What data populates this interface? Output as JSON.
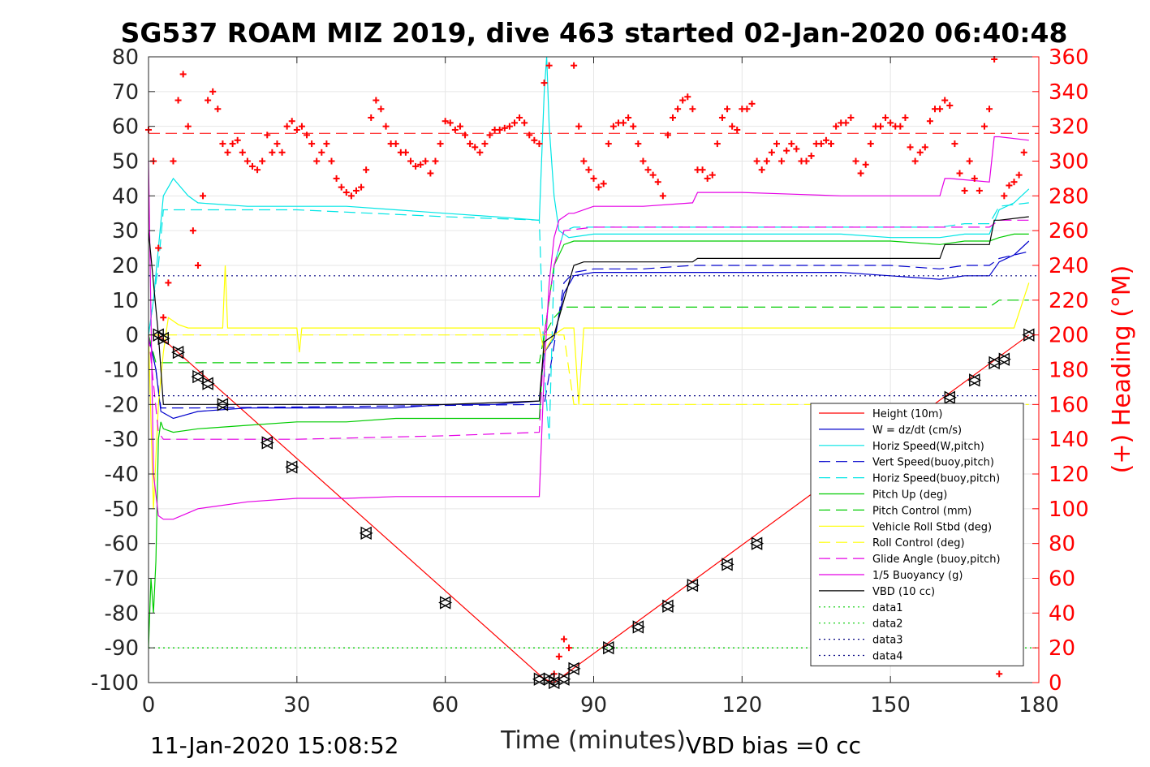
{
  "chart_data": {
    "type": "line",
    "title": "SG537 ROAM MIZ 2019, dive 463 started 02-Jan-2020 06:40:48",
    "xlabel": "Time (minutes)",
    "ylabel_right": "(+) Heading (°M)",
    "xlim": [
      0,
      180
    ],
    "ylim_left": [
      -100,
      80
    ],
    "ylim_right": [
      0,
      360
    ],
    "x_ticks": [
      0,
      30,
      60,
      90,
      120,
      150,
      180
    ],
    "y_ticks_left": [
      80,
      70,
      60,
      50,
      40,
      30,
      20,
      10,
      0,
      -10,
      -20,
      -30,
      -40,
      -50,
      -60,
      -70,
      -80,
      -90,
      -100
    ],
    "y_ticks_right": [
      360,
      340,
      320,
      300,
      280,
      260,
      240,
      220,
      200,
      180,
      160,
      140,
      120,
      100,
      80,
      60,
      40,
      20,
      0
    ],
    "grid": true,
    "legend_position": "bottom-right",
    "footer_left": "11-Jan-2020 15:08:52",
    "footer_right": "VBD bias =0 cc",
    "colors": {
      "red": "#ff0000",
      "blue": "#0000cc",
      "cyan": "#00e5e5",
      "green": "#00cc00",
      "yellow": "#ffff00",
      "magenta": "#e500e5",
      "black": "#000000"
    },
    "legend": [
      {
        "name": "Height (10m)",
        "color": "#ff0000",
        "dash": "solid"
      },
      {
        "name": "W = dz/dt (cm/s)",
        "color": "#0000cc",
        "dash": "solid"
      },
      {
        "name": "Horiz Speed(W,pitch)",
        "color": "#00e5e5",
        "dash": "solid"
      },
      {
        "name": "Vert Speed(buoy,pitch)",
        "color": "#0000cc",
        "dash": "dashed"
      },
      {
        "name": "Horiz Speed(buoy,pitch)",
        "color": "#00e5e5",
        "dash": "dashed"
      },
      {
        "name": "Pitch Up (deg)",
        "color": "#00cc00",
        "dash": "solid"
      },
      {
        "name": "Pitch Control (mm)",
        "color": "#00cc00",
        "dash": "dashed"
      },
      {
        "name": "Vehicle Roll Stbd (deg)",
        "color": "#ffff00",
        "dash": "solid"
      },
      {
        "name": "Roll Control (deg)",
        "color": "#ffff00",
        "dash": "dashed"
      },
      {
        "name": "Glide Angle (buoy,pitch)",
        "color": "#e500e5",
        "dash": "dashed"
      },
      {
        "name": "1/5 Buoyancy (g)",
        "color": "#e500e5",
        "dash": "solid"
      },
      {
        "name": "VBD (10 cc)",
        "color": "#000000",
        "dash": "solid"
      },
      {
        "name": "data1",
        "color": "#00cc00",
        "dash": "dotted"
      },
      {
        "name": "data2",
        "color": "#00cc00",
        "dash": "dotted"
      },
      {
        "name": "data3",
        "color": "#000080",
        "dash": "dotted"
      },
      {
        "name": "data4",
        "color": "#000080",
        "dash": "dotted"
      }
    ],
    "series": [
      {
        "name": "Height (10m)",
        "color": "#ff0000",
        "dash": "solid",
        "axis": "left",
        "x": [
          0,
          2,
          80,
          82,
          178
        ],
        "y": [
          0,
          0,
          -99,
          -100,
          0
        ]
      },
      {
        "name": "W = dz/dt (cm/s)",
        "color": "#0000cc",
        "dash": "solid",
        "axis": "left",
        "x": [
          0,
          1.5,
          2.5,
          5,
          10,
          20,
          30,
          40,
          50,
          60,
          70,
          79,
          80,
          82,
          84,
          86,
          90,
          100,
          110,
          120,
          130,
          140,
          150,
          160,
          165,
          170,
          172,
          175,
          178
        ],
        "y": [
          0,
          -10,
          -22,
          -24,
          -22,
          -21,
          -21,
          -21,
          -21,
          -20,
          -20,
          -19,
          -5,
          -1,
          12,
          17,
          18,
          18,
          18,
          18,
          18,
          18,
          17,
          16,
          17,
          17,
          21,
          23,
          27
        ]
      },
      {
        "name": "Horiz Speed(W,pitch)",
        "color": "#00e5e5",
        "dash": "solid",
        "axis": "left",
        "x": [
          0,
          1,
          2,
          3,
          5,
          8,
          10,
          20,
          30,
          40,
          50,
          60,
          70,
          79,
          80,
          80.5,
          81,
          82,
          83,
          85,
          90,
          100,
          110,
          120,
          130,
          140,
          150,
          160,
          165,
          170,
          172,
          175,
          178
        ],
        "y": [
          0,
          10,
          25,
          40,
          45,
          40,
          38,
          37,
          37,
          37,
          36,
          35,
          34,
          33,
          70,
          80,
          60,
          40,
          30,
          28,
          29,
          29,
          29,
          29,
          29,
          29,
          28,
          28,
          29,
          29,
          36,
          38,
          42
        ]
      },
      {
        "name": "Vert Speed(buoy,pitch)",
        "color": "#0000cc",
        "dash": "dashed",
        "axis": "left",
        "x": [
          0,
          1.5,
          2.5,
          10,
          80,
          82,
          84,
          86,
          90,
          100,
          110,
          120,
          130,
          140,
          150,
          160,
          165,
          170,
          172,
          178
        ],
        "y": [
          0,
          -10,
          -21,
          -21,
          -20,
          -3,
          15,
          18,
          19,
          19,
          20,
          20,
          20,
          20,
          20,
          19,
          20,
          20,
          22,
          24
        ]
      },
      {
        "name": "Horiz Speed(buoy,pitch)",
        "color": "#00e5e5",
        "dash": "dashed",
        "axis": "left",
        "x": [
          0,
          2,
          3,
          10,
          30,
          60,
          79,
          80,
          81,
          82,
          84,
          86,
          90,
          120,
          150,
          160,
          165,
          170,
          172,
          178
        ],
        "y": [
          0,
          20,
          36,
          36,
          36,
          34,
          33,
          -10,
          -30,
          20,
          30,
          31,
          31,
          31,
          31,
          31,
          32,
          32,
          37,
          38
        ]
      },
      {
        "name": "Pitch Up (deg)",
        "color": "#00cc00",
        "dash": "solid",
        "axis": "left",
        "x": [
          0,
          0.5,
          1,
          1.5,
          2,
          2.5,
          3,
          5,
          10,
          20,
          30,
          40,
          50,
          60,
          70,
          79,
          80,
          82,
          84,
          86,
          90,
          100,
          110,
          120,
          130,
          140,
          150,
          160,
          165,
          170,
          172,
          175,
          178
        ],
        "y": [
          -90,
          -70,
          -80,
          -65,
          -30,
          -25,
          -27,
          -28,
          -27,
          -26,
          -25,
          -25,
          -24,
          -24,
          -24,
          -24,
          0,
          20,
          26,
          27,
          27,
          27,
          27,
          27,
          27,
          27,
          27,
          26,
          27,
          27,
          28,
          29,
          29
        ]
      },
      {
        "name": "Pitch Control (mm)",
        "color": "#00cc00",
        "dash": "dashed",
        "axis": "left",
        "x": [
          0,
          1.5,
          2.5,
          10,
          79,
          80,
          82,
          84,
          90,
          120,
          150,
          170,
          172,
          178
        ],
        "y": [
          0,
          -8,
          -8,
          -8,
          -8,
          0,
          5,
          8,
          8,
          8,
          8,
          8,
          10,
          10
        ]
      },
      {
        "name": "Vehicle Roll Stbd (deg)",
        "color": "#ffff00",
        "dash": "solid",
        "axis": "left",
        "x": [
          0,
          1,
          2,
          3,
          4,
          6,
          8,
          15,
          15.5,
          16,
          17,
          30,
          30.5,
          31,
          40,
          60,
          79,
          80,
          82,
          84,
          86,
          87,
          88,
          90,
          100,
          110,
          120,
          130,
          140,
          150,
          160,
          170,
          175,
          178
        ],
        "y": [
          0,
          -50,
          -20,
          -5,
          5,
          3,
          2,
          2,
          20,
          2,
          2,
          2,
          -5,
          2,
          2,
          2,
          2,
          -5,
          0,
          2,
          2,
          -20,
          2,
          2,
          2,
          2,
          2,
          2,
          2,
          2,
          2,
          2,
          2,
          15
        ]
      },
      {
        "name": "Roll Control (deg)",
        "color": "#ffff00",
        "dash": "dashed",
        "axis": "left",
        "x": [
          0,
          2,
          4,
          80,
          82,
          84,
          86,
          178
        ],
        "y": [
          0,
          0,
          0,
          0,
          0,
          0,
          -20,
          -20
        ]
      },
      {
        "name": "Glide Angle (buoy,pitch)",
        "color": "#e500e5",
        "dash": "dashed",
        "axis": "left",
        "x": [
          0,
          2,
          3,
          10,
          30,
          60,
          79,
          80,
          82,
          84,
          90,
          120,
          150,
          160,
          170,
          172,
          178
        ],
        "y": [
          0,
          -28,
          -30,
          -30,
          -30,
          -29,
          -28,
          0,
          20,
          30,
          31,
          31,
          31,
          31,
          31,
          33,
          33
        ]
      },
      {
        "name": "1/5 Buoyancy (g)",
        "color": "#e500e5",
        "dash": "solid",
        "axis": "left",
        "x": [
          0,
          1,
          2,
          3,
          5,
          10,
          20,
          30,
          40,
          50,
          60,
          70,
          78,
          79,
          80,
          81,
          82,
          83,
          84,
          85,
          86,
          90,
          100,
          110,
          111,
          120,
          130,
          140,
          150,
          160,
          161,
          162,
          170,
          171,
          172,
          178
        ],
        "y": [
          50,
          -40,
          -52,
          -53,
          -53,
          -50,
          -48,
          -47,
          -47,
          -46.5,
          -46.5,
          -46.5,
          -46.5,
          -46.5,
          -10,
          15,
          28,
          33,
          34,
          35,
          35,
          37,
          37,
          38,
          41,
          41,
          40.5,
          40,
          40,
          40,
          45,
          45,
          44,
          57,
          57,
          56
        ]
      },
      {
        "name": "VBD (10 cc)",
        "color": "#000000",
        "dash": "solid",
        "axis": "left",
        "x": [
          0,
          2,
          3,
          10,
          60,
          79,
          80,
          81,
          82,
          84,
          86,
          88,
          90,
          100,
          110,
          111,
          130,
          160,
          161,
          170,
          171,
          172,
          178
        ],
        "y": [
          30,
          0,
          -20,
          -20,
          -20,
          -19,
          -2,
          -1,
          0,
          10,
          20,
          21,
          21,
          21,
          21,
          22,
          22,
          22,
          26,
          26,
          33,
          33,
          34
        ]
      },
      {
        "name": "data1",
        "color": "#00cc00",
        "dash": "dotted",
        "axis": "left",
        "x": [
          0,
          180
        ],
        "y": [
          -90,
          -90
        ]
      },
      {
        "name": "data2",
        "color": "#00cc00",
        "dash": "dotted",
        "axis": "left",
        "x": [
          0,
          180
        ],
        "y": [
          -90,
          -90
        ]
      },
      {
        "name": "data3",
        "color": "#000080",
        "dash": "dotted",
        "axis": "left",
        "x": [
          0,
          180
        ],
        "y": [
          17,
          17
        ]
      },
      {
        "name": "data4",
        "color": "#000080",
        "dash": "dotted",
        "axis": "left",
        "x": [
          0,
          180
        ],
        "y": [
          -17.5,
          -17.5
        ]
      }
    ],
    "heading_mean": {
      "color": "#ff0000",
      "dash": "dashed",
      "axis": "right",
      "value": 316
    },
    "heading_points": {
      "color": "#ff0000",
      "marker": "+",
      "axis": "right",
      "x": [
        0,
        1,
        2,
        3,
        4,
        5,
        6,
        7,
        8,
        9,
        10,
        11,
        12,
        13,
        14,
        15,
        16,
        17,
        18,
        19,
        20,
        21,
        22,
        23,
        24,
        25,
        26,
        27,
        28,
        29,
        30,
        31,
        32,
        33,
        34,
        35,
        36,
        37,
        38,
        39,
        40,
        41,
        42,
        43,
        44,
        45,
        46,
        47,
        48,
        49,
        50,
        51,
        52,
        53,
        54,
        55,
        56,
        57,
        58,
        59,
        60,
        61,
        62,
        63,
        64,
        65,
        66,
        67,
        68,
        69,
        70,
        71,
        72,
        73,
        74,
        75,
        76,
        77,
        78,
        79,
        80,
        81,
        82,
        83,
        84,
        85,
        86,
        87,
        88,
        89,
        90,
        91,
        92,
        93,
        94,
        95,
        96,
        97,
        98,
        99,
        100,
        101,
        102,
        103,
        104,
        105,
        106,
        107,
        108,
        109,
        110,
        111,
        112,
        113,
        114,
        115,
        116,
        117,
        118,
        119,
        120,
        121,
        122,
        123,
        124,
        125,
        126,
        127,
        128,
        129,
        130,
        131,
        132,
        133,
        134,
        135,
        136,
        137,
        138,
        139,
        140,
        141,
        142,
        143,
        144,
        145,
        146,
        147,
        148,
        149,
        150,
        151,
        152,
        153,
        154,
        155,
        156,
        157,
        158,
        159,
        160,
        161,
        162,
        163,
        164,
        165,
        166,
        167,
        168,
        169,
        170,
        171,
        172,
        173,
        174,
        175,
        176,
        177
      ],
      "y": [
        318,
        300,
        250,
        210,
        230,
        300,
        335,
        350,
        320,
        260,
        240,
        280,
        335,
        340,
        330,
        310,
        305,
        310,
        312,
        305,
        300,
        297,
        295,
        300,
        315,
        305,
        310,
        305,
        320,
        323,
        318,
        320,
        315,
        310,
        300,
        305,
        310,
        300,
        290,
        285,
        282,
        280,
        283,
        285,
        295,
        325,
        335,
        330,
        320,
        310,
        310,
        305,
        305,
        300,
        297,
        298,
        300,
        293,
        300,
        310,
        323,
        322,
        318,
        320,
        315,
        310,
        308,
        305,
        310,
        315,
        318,
        318,
        319,
        320,
        322,
        325,
        322,
        315,
        312,
        310,
        345,
        355,
        5,
        15,
        25,
        20,
        355,
        320,
        300,
        295,
        290,
        285,
        287,
        310,
        320,
        322,
        322,
        325,
        320,
        310,
        300,
        295,
        292,
        288,
        280,
        315,
        325,
        330,
        335,
        337,
        330,
        295,
        295,
        290,
        292,
        310,
        325,
        330,
        320,
        318,
        330,
        330,
        333,
        300,
        295,
        300,
        305,
        310,
        300,
        306,
        310,
        307,
        300,
        300,
        303,
        310,
        310,
        312,
        310,
        320,
        322,
        322,
        325,
        300,
        293,
        298,
        310,
        320,
        320,
        325,
        322,
        320,
        320,
        325,
        308,
        300,
        305,
        308,
        323,
        330,
        330,
        335,
        332,
        310,
        293,
        283,
        300,
        290,
        283,
        320,
        330,
        360,
        5,
        280,
        286,
        288,
        292,
        305
      ]
    },
    "markers": {
      "color": "#000000",
      "symbol": "triangles",
      "points": [
        [
          2,
          0
        ],
        [
          3,
          -1
        ],
        [
          6,
          -5
        ],
        [
          10,
          -12
        ],
        [
          12,
          -14
        ],
        [
          15,
          -20
        ],
        [
          24,
          -31
        ],
        [
          29,
          -38
        ],
        [
          44,
          -57
        ],
        [
          60,
          -77
        ],
        [
          79,
          -99
        ],
        [
          81,
          -99
        ],
        [
          82,
          -100
        ],
        [
          84,
          -99
        ],
        [
          86,
          -96
        ],
        [
          93,
          -90
        ],
        [
          99,
          -84
        ],
        [
          105,
          -78
        ],
        [
          110,
          -72
        ],
        [
          117,
          -66
        ],
        [
          123,
          -60
        ],
        [
          162,
          -18
        ],
        [
          167,
          -13
        ],
        [
          171,
          -8
        ],
        [
          173,
          -7
        ],
        [
          178,
          0
        ]
      ]
    }
  }
}
